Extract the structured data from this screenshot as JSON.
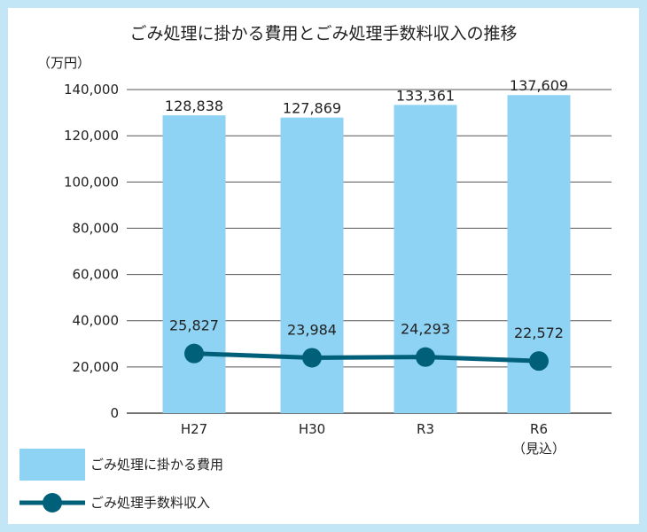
{
  "chart_data": {
    "type": "bar",
    "title": "ごみ処理に掛かる費用とごみ処理手数料収入の推移",
    "unit_label": "（万円）",
    "categories": [
      "H27",
      "H30",
      "R3",
      "R6"
    ],
    "category_notes": [
      "",
      "",
      "",
      "（見込）"
    ],
    "ylim": [
      0,
      140000
    ],
    "yticks": [
      "0",
      "20,000",
      "40,000",
      "60,000",
      "80,000",
      "100,000",
      "120,000",
      "140,000"
    ],
    "ytick_values": [
      0,
      20000,
      40000,
      60000,
      80000,
      100000,
      120000,
      140000
    ],
    "grid": true,
    "legend_position": "bottom-left",
    "series": [
      {
        "name": "ごみ処理に掛かる費用",
        "kind": "bar",
        "color": "#8fd3f4",
        "values": [
          128838,
          127869,
          133361,
          137609
        ],
        "labels": [
          "128,838",
          "127,869",
          "133,361",
          "137,609"
        ]
      },
      {
        "name": "ごみ処理手数料収入",
        "kind": "line",
        "color": "#00607a",
        "values": [
          25827,
          23984,
          24293,
          22572
        ],
        "labels": [
          "25,827",
          "23,984",
          "24,293",
          "22,572"
        ]
      }
    ]
  }
}
